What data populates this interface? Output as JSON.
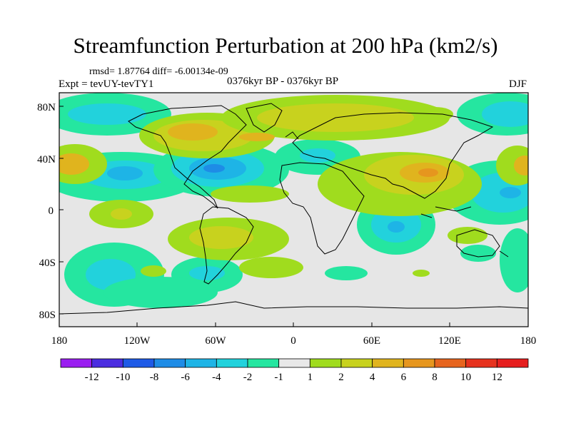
{
  "title": "Streamfunction Perturbation at 200 hPa (km2/s)",
  "stats": "rmsd= 1.87764 diff= -6.00134e-09",
  "experiment": "Expt = tevUY-tevTY1",
  "period": "0376kyr BP - 0376kyr BP",
  "season": "DJF",
  "axes": {
    "y_ticks": [
      "80N",
      "40N",
      "0",
      "40S",
      "80S"
    ],
    "x_ticks": [
      "180",
      "120W",
      "60W",
      "0",
      "60E",
      "120E",
      "180"
    ]
  },
  "colorbar": {
    "labels": [
      "-12",
      "-10",
      "-8",
      "-6",
      "-4",
      "-2",
      "-1",
      "1",
      "2",
      "4",
      "6",
      "8",
      "10",
      "12"
    ],
    "colors": [
      "#9a1ef0",
      "#4b2de0",
      "#1e5ae6",
      "#1e8ce6",
      "#1eb4e6",
      "#22d2dc",
      "#25e6a0",
      "#e8e8e8",
      "#a0dc1e",
      "#c8d21e",
      "#e0b41e",
      "#e6961e",
      "#e6641e",
      "#e6321e",
      "#e61e1e"
    ]
  },
  "colors": {
    "background_land": "#e6e6e6"
  }
}
